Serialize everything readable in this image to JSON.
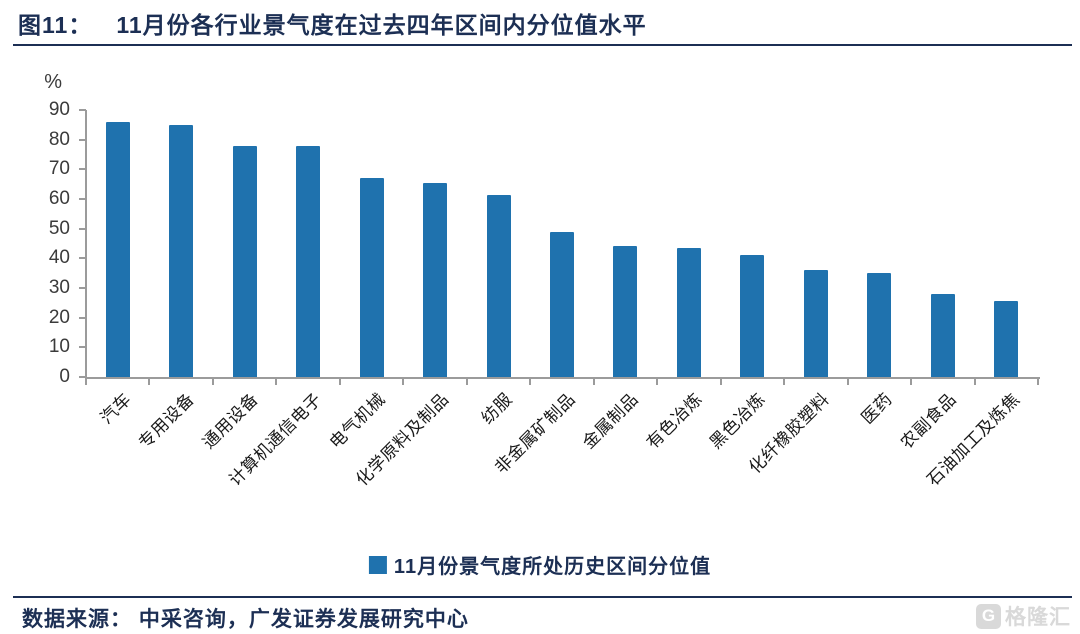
{
  "header": {
    "figure_label": "图11：",
    "title": "11月份各行业景气度在过去四年区间内分位值水平"
  },
  "chart_data": {
    "type": "bar",
    "title": "11月份各行业景气度在过去四年区间内分位值水平",
    "unit_label": "%",
    "categories": [
      "汽车",
      "专用设备",
      "通用设备",
      "计算机通信电子",
      "电气机械",
      "化学原料及制品",
      "纺服",
      "非金属矿制品",
      "金属制品",
      "有色冶炼",
      "黑色冶炼",
      "化纤橡胶塑料",
      "医药",
      "农副食品",
      "石油加工及炼焦"
    ],
    "values": [
      86,
      85,
      78,
      78,
      67,
      65.5,
      61.5,
      49,
      44,
      43.5,
      41,
      36,
      35,
      28,
      25.5
    ],
    "ylim": [
      0,
      90
    ],
    "yticks": [
      0,
      10,
      20,
      30,
      40,
      50,
      60,
      70,
      80,
      90
    ],
    "grid": false,
    "legend": [
      "11月份景气度所处历史区间分位值"
    ],
    "legend_position": "bottom",
    "bar_color": "#1F72AE"
  },
  "legend": {
    "label": "11月份景气度所处历史区间分位值"
  },
  "footer": {
    "source": "数据来源：  中采咨询，广发证券发展研究中心",
    "watermark_icon": "G",
    "watermark_text": "格隆汇"
  },
  "colors": {
    "accent_navy": "#1C2F54",
    "bar_blue": "#1F72AE",
    "axis_gray": "#9B9B9B",
    "tick_text": "#3B3B3B",
    "watermark_gray": "#D9D9D9"
  }
}
